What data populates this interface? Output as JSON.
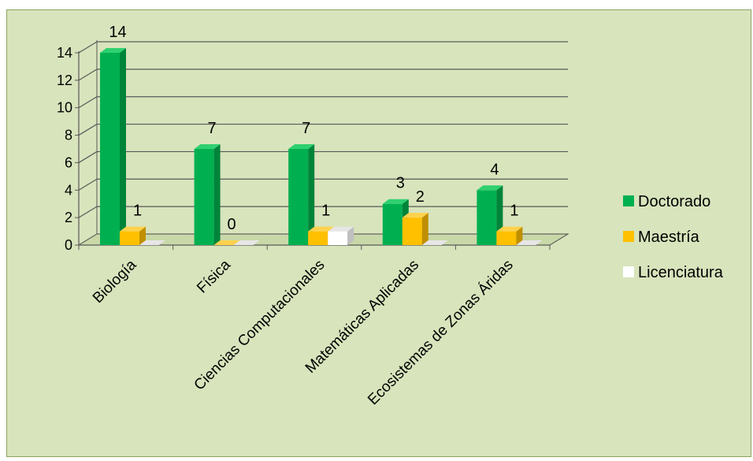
{
  "chart_data": {
    "type": "bar",
    "style": "3d-clustered-column",
    "categories": [
      "Biología",
      "Física",
      "Ciencias Computacionales",
      "Matemáticas Aplicadas",
      "Ecosistemas de Zonas Áridas"
    ],
    "series": [
      {
        "name": "Doctorado",
        "values": [
          14,
          7,
          7,
          3,
          4
        ],
        "labels": [
          "14",
          "7",
          "7",
          "3",
          "4"
        ],
        "color": "#00b050",
        "side_color": "#00843a",
        "top_color": "#2fd070"
      },
      {
        "name": "Maestría",
        "values": [
          1,
          0,
          1,
          2,
          1
        ],
        "labels": [
          "1",
          "0",
          "1",
          "2",
          "1"
        ],
        "color": "#ffc000",
        "side_color": "#c08f00",
        "top_color": "#ffd24d"
      },
      {
        "name": "Licenciatura",
        "values": [
          0,
          0,
          1,
          0,
          0
        ],
        "labels": [
          "",
          "",
          "",
          "",
          ""
        ],
        "color": "#ffffff",
        "side_color": "#bfbfbf",
        "top_color": "#e6e6e6"
      }
    ],
    "yticks": [
      "0",
      "2",
      "4",
      "6",
      "8",
      "10",
      "12",
      "14"
    ],
    "ylim": [
      0,
      14
    ],
    "title": "",
    "xlabel": "",
    "ylabel": "",
    "grid": true,
    "legend": "right",
    "background_color": "#d8e4bc",
    "border_color": "#8ea35e"
  }
}
